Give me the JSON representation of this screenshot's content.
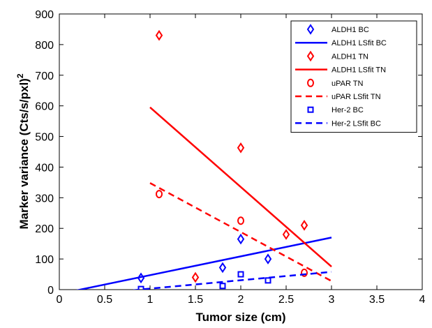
{
  "chart_data": {
    "type": "scatter",
    "xlabel": "Tumor size (cm)",
    "ylabel": "Marker variance (Cts/s/pxl)",
    "ylabel_superscript": "2",
    "xlim": [
      0,
      4
    ],
    "ylim": [
      0,
      900
    ],
    "xticks": [
      "0",
      "0.5",
      "1",
      "1.5",
      "2",
      "2.5",
      "3",
      "3.5",
      "4"
    ],
    "xtick_values": [
      0,
      0.5,
      1,
      1.5,
      2,
      2.5,
      3,
      3.5,
      4
    ],
    "yticks": [
      "0",
      "100",
      "200",
      "300",
      "400",
      "500",
      "600",
      "700",
      "800",
      "900"
    ],
    "ytick_values": [
      0,
      100,
      200,
      300,
      400,
      500,
      600,
      700,
      800,
      900
    ],
    "grid": false,
    "legend_position": "top-right",
    "series": [
      {
        "name": "ALDH1 BC",
        "kind": "points",
        "marker": "diamond",
        "color": "#0000ff",
        "x": [
          0.9,
          1.8,
          2.0,
          2.3
        ],
        "y": [
          38,
          72,
          165,
          100
        ]
      },
      {
        "name": "ALDH1 LSfit BC",
        "kind": "line",
        "style": "solid",
        "color": "#0000ff",
        "x": [
          0.15,
          3.0
        ],
        "y": [
          -5,
          170
        ]
      },
      {
        "name": "ALDH1 TN",
        "kind": "points",
        "marker": "diamond",
        "color": "#ff0000",
        "x": [
          1.1,
          2.0,
          2.5,
          2.7,
          1.5
        ],
        "y": [
          830,
          463,
          180,
          210,
          40
        ]
      },
      {
        "name": "ALDH1 LSfit TN",
        "kind": "line",
        "style": "solid",
        "color": "#ff0000",
        "x": [
          1.0,
          3.0
        ],
        "y": [
          595,
          75
        ]
      },
      {
        "name": "uPAR TN",
        "kind": "points",
        "marker": "circle",
        "color": "#ff0000",
        "x": [
          1.1,
          2.0,
          2.7
        ],
        "y": [
          312,
          225,
          55
        ]
      },
      {
        "name": "uPAR LSfit TN",
        "kind": "line",
        "style": "dashed",
        "color": "#ff0000",
        "x": [
          1.0,
          3.0
        ],
        "y": [
          348,
          28
        ]
      },
      {
        "name": "Her-2 BC",
        "kind": "points",
        "marker": "square",
        "color": "#0000ff",
        "x": [
          0.9,
          1.8,
          2.0,
          2.3
        ],
        "y": [
          2,
          12,
          50,
          30
        ]
      },
      {
        "name": "Her-2 LSfit BC",
        "kind": "line",
        "style": "dashed",
        "color": "#0000ff",
        "x": [
          0.7,
          3.0
        ],
        "y": [
          -5,
          58
        ]
      }
    ]
  }
}
